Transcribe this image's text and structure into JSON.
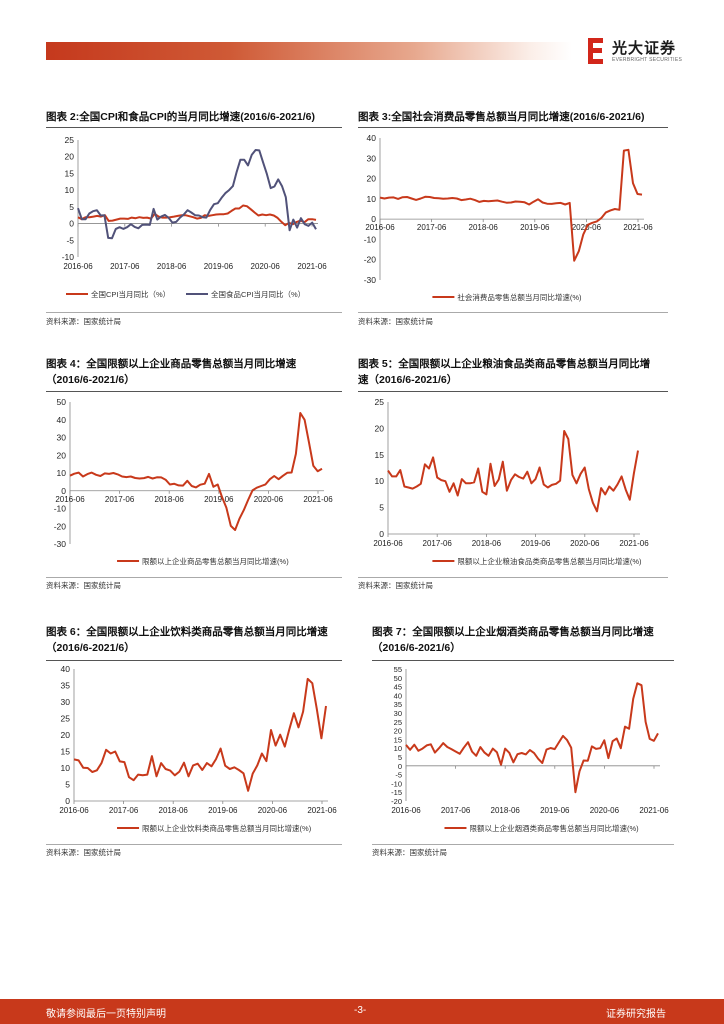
{
  "header": {
    "logo_cn": "光大证券",
    "logo_en": "EVERBRIGHT SECURITIES"
  },
  "charts": [
    {
      "id": "chart2",
      "title_lines": [
        "图表 2:全国CPI和食品CPI的当月同比增速(2016/6-2021/6)"
      ],
      "source": "资料来源：国家统计局",
      "chart_data": {
        "type": "line",
        "x_ticks": [
          "2016-06",
          "2017-06",
          "2018-06",
          "2019-06",
          "2020-06",
          "2021-06"
        ],
        "ylim": [
          -10,
          25
        ],
        "y_ticks": [
          -10,
          -5,
          0,
          5,
          10,
          15,
          20,
          25
        ],
        "series": [
          {
            "name": "全国CPI当月同比（%）",
            "color": "#c8391b",
            "values": [
              1.9,
              1.3,
              1.9,
              1.9,
              2.1,
              2.3,
              2.1,
              2.5,
              0.8,
              0.9,
              1.2,
              1.5,
              1.5,
              1.4,
              1.8,
              1.6,
              1.9,
              1.7,
              1.8,
              1.5,
              2.9,
              2.1,
              1.8,
              1.8,
              1.9,
              2.1,
              2.3,
              2.5,
              2.5,
              2.2,
              1.9,
              1.5,
              1.7,
              2.5,
              2.3,
              2.5,
              2.7,
              2.8,
              2.8,
              3.0,
              3.8,
              4.5,
              4.5,
              5.4,
              5.2,
              4.3,
              3.3,
              2.4,
              2.7,
              2.5,
              2.7,
              2.4,
              1.7,
              0.5,
              -0.5,
              0.2,
              -0.2,
              0.5,
              0.9,
              0.4,
              1.3,
              1.3,
              1.1
            ]
          },
          {
            "name": "全国食品CPI当月同比（%）",
            "color": "#515279",
            "values": [
              4.6,
              1.3,
              1.3,
              3.0,
              3.7,
              4.0,
              2.4,
              2.5,
              -4.3,
              -4.4,
              -1.6,
              -1.1,
              -1.6,
              -1.1,
              -0.2,
              -1.0,
              -1.4,
              -0.4,
              -0.3,
              -0.4,
              4.4,
              1.2,
              2.1,
              2.6,
              1.7,
              0.3,
              0.5,
              1.8,
              2.7,
              4.0,
              3.3,
              2.5,
              2.4,
              1.9,
              1.8,
              4.1,
              5.8,
              6.1,
              7.7,
              9.1,
              10.0,
              11.2,
              15.5,
              19.1,
              19.1,
              17.4,
              20.6,
              22.0,
              21.9,
              18.3,
              14.8,
              10.6,
              11.1,
              13.2,
              11.2,
              7.9,
              -2.0,
              1.2,
              -1.2,
              1.6,
              -0.2,
              -0.7,
              0.3,
              -1.7
            ]
          }
        ]
      }
    },
    {
      "id": "chart3",
      "title_lines": [
        "图表 3:全国社会消费品零售总额当月同比增速(2016/6-2021/6)"
      ],
      "source": "资料来源：国家统计局",
      "chart_data": {
        "type": "line",
        "x_ticks": [
          "2016-06",
          "2017-06",
          "2018-06",
          "2019-06",
          "2020-06",
          "2021-06"
        ],
        "ylim": [
          -30,
          40
        ],
        "y_ticks": [
          -30,
          -20,
          -10,
          0,
          10,
          20,
          30,
          40
        ],
        "series": [
          {
            "name": "社会消费品零售总额当月同比增速(%)",
            "color": "#c8391b",
            "values": [
              10.6,
              10.2,
              10.6,
              10.7,
              10.0,
              10.8,
              10.9,
              10.2,
              9.5,
              10.2,
              11.0,
              10.9,
              10.4,
              10.3,
              10.1,
              10.2,
              10.4,
              10.2,
              9.4,
              9.7,
              10.1,
              9.4,
              8.5,
              9.0,
              8.8,
              9.0,
              9.2,
              8.6,
              8.1,
              8.2,
              8.7,
              8.6,
              8.3,
              7.2,
              8.6,
              9.8,
              8.2,
              7.6,
              7.5,
              7.8,
              8.0,
              7.2,
              8.0,
              -20.5,
              -15.8,
              -7.5,
              -2.8,
              -1.8,
              -1.1,
              0.5,
              3.3,
              4.3,
              5.0,
              4.6,
              33.8,
              34.2,
              17.7,
              12.4,
              12.1
            ]
          }
        ]
      }
    },
    {
      "id": "chart4",
      "title_lines": [
        "图表 4：全国限额以上企业商品零售总额当月同比增速",
        "（2016/6-2021/6）"
      ],
      "source": "资料来源：国家统计局",
      "chart_data": {
        "type": "line",
        "x_ticks": [
          "2016-06",
          "2017-06",
          "2018-06",
          "2019-06",
          "2020-06",
          "2021-06"
        ],
        "ylim": [
          -30,
          50
        ],
        "y_ticks": [
          -30,
          -20,
          -10,
          0,
          10,
          20,
          30,
          40,
          50
        ],
        "series": [
          {
            "name": "限额以上企业商品零售总额当月同比增速(%)",
            "color": "#c8391b",
            "values": [
              8.5,
              9.6,
              10.2,
              8.0,
              9.4,
              10.2,
              9.0,
              8.3,
              9.8,
              9.5,
              10.0,
              9.2,
              8.0,
              7.7,
              8.0,
              7.2,
              6.9,
              7.1,
              7.8,
              6.9,
              7.6,
              7.5,
              6.2,
              3.5,
              3.9,
              3.0,
              2.9,
              5.6,
              2.7,
              1.9,
              3.4,
              4.0,
              9.5,
              2.2,
              3.5,
              -3.7,
              -9.6,
              -19.8,
              -22.1,
              -15.8,
              -10.9,
              -5.2,
              0.2,
              1.7,
              2.7,
              3.6,
              6.5,
              8.3,
              6.5,
              8.4,
              10.1,
              10.3,
              20.8,
              43.8,
              40.0,
              27.1,
              14.1,
              11.0,
              12.4
            ]
          }
        ]
      }
    },
    {
      "id": "chart5",
      "title_lines": [
        "图表 5：全国限额以上企业粮油食品类商品零售总额当月同比增",
        "速（2016/6-2021/6）"
      ],
      "source": "资料来源：国家统计局",
      "chart_data": {
        "type": "line",
        "x_ticks": [
          "2016-06",
          "2017-06",
          "2018-06",
          "2019-06",
          "2020-06",
          "2021-06"
        ],
        "ylim": [
          0,
          25
        ],
        "y_ticks": [
          0,
          5,
          10,
          15,
          20,
          25
        ],
        "series": [
          {
            "name": "限额以上企业粮油食品类商品零售总额当月同比增速(%)",
            "color": "#c8391b",
            "values": [
              12.0,
              10.9,
              10.9,
              12.1,
              9.0,
              8.8,
              8.6,
              9.0,
              9.5,
              13.2,
              12.4,
              14.5,
              10.7,
              10.2,
              10.0,
              8.0,
              9.6,
              7.3,
              10.4,
              9.6,
              9.6,
              9.8,
              12.4,
              8.0,
              7.5,
              13.3,
              9.1,
              10.3,
              13.7,
              8.2,
              10.2,
              11.3,
              10.8,
              10.5,
              11.8,
              9.6,
              10.4,
              12.6,
              9.4,
              8.8,
              9.3,
              9.5,
              10.1,
              19.5,
              18.0,
              11.2,
              9.6,
              11.4,
              12.6,
              8.5,
              5.9,
              4.3,
              8.7,
              7.5,
              9.0,
              8.2,
              9.4,
              10.9,
              8.4,
              6.5,
              11.5,
              15.8
            ]
          }
        ]
      }
    },
    {
      "id": "chart6",
      "title_lines": [
        "图表 6：全国限额以上企业饮料类商品零售总额当月同比增速",
        "（2016/6-2021/6）"
      ],
      "source": "资料来源：国家统计局",
      "chart_data": {
        "type": "line",
        "x_ticks": [
          "2016-06",
          "2017-06",
          "2018-06",
          "2019-06",
          "2020-06",
          "2021-06"
        ],
        "ylim": [
          0,
          40
        ],
        "y_ticks": [
          0,
          5,
          10,
          15,
          20,
          25,
          30,
          35,
          40
        ],
        "series": [
          {
            "name": "限额以上企业饮料类商品零售总额当月同比增速(%)",
            "color": "#c8391b",
            "values": [
              12.6,
              12.3,
              10.1,
              10.0,
              8.8,
              9.3,
              11.5,
              15.5,
              14.4,
              15.0,
              12.0,
              11.8,
              7.2,
              6.3,
              8.0,
              7.8,
              8.0,
              13.6,
              7.5,
              11.5,
              9.7,
              9.2,
              7.8,
              8.9,
              11.6,
              7.5,
              10.8,
              11.3,
              9.4,
              11.5,
              10.5,
              12.7,
              15.9,
              10.7,
              9.7,
              10.2,
              9.4,
              8.4,
              3.1,
              8.3,
              10.8,
              14.4,
              12.1,
              21.5,
              16.8,
              20.1,
              16.5,
              21.7,
              26.6,
              22.3,
              27.1,
              37.0,
              35.7,
              27.9,
              19.0,
              28.8
            ]
          }
        ]
      }
    },
    {
      "id": "chart7",
      "title_lines": [
        "图表 7：全国限额以上企业烟酒类商品零售总额当月同比增速",
        "（2016/6-2021/6）"
      ],
      "source": "资料来源：国家统计局",
      "chart_data": {
        "type": "line",
        "x_ticks": [
          "2016-06",
          "2017-06",
          "2018-06",
          "2019-06",
          "2020-06",
          "2021-06"
        ],
        "ylim": [
          -20,
          55
        ],
        "y_ticks": [
          -20,
          -15,
          -10,
          -5,
          0,
          5,
          10,
          15,
          20,
          25,
          30,
          35,
          40,
          45,
          50,
          55
        ],
        "series": [
          {
            "name": "限额以上企业烟酒类商品零售总额当月同比增速(%)",
            "color": "#c8391b",
            "values": [
              11.9,
              9.1,
              12.0,
              8.5,
              9.8,
              11.6,
              12.2,
              7.5,
              10.0,
              12.9,
              10.7,
              9.5,
              8.1,
              6.8,
              10.3,
              13.4,
              8.0,
              5.7,
              10.6,
              7.5,
              5.7,
              9.8,
              7.7,
              0.6,
              9.8,
              7.4,
              2.0,
              6.6,
              7.3,
              6.5,
              9.0,
              7.2,
              4.0,
              1.6,
              9.2,
              10.1,
              9.5,
              13.3,
              17.0,
              14.6,
              10.3,
              -15.0,
              -3.1,
              3.0,
              2.9,
              11.0,
              9.6,
              10.0,
              14.5,
              4.4,
              14.0,
              15.5,
              10.0,
              22.3,
              21.0,
              38.0,
              46.9,
              45.8,
              25.0,
              15.3,
              14.2,
              18.4
            ]
          }
        ]
      }
    }
  ],
  "footer": {
    "left": "敬请参阅最后一页特别声明",
    "center": "-3-",
    "right": "证券研究报告"
  }
}
